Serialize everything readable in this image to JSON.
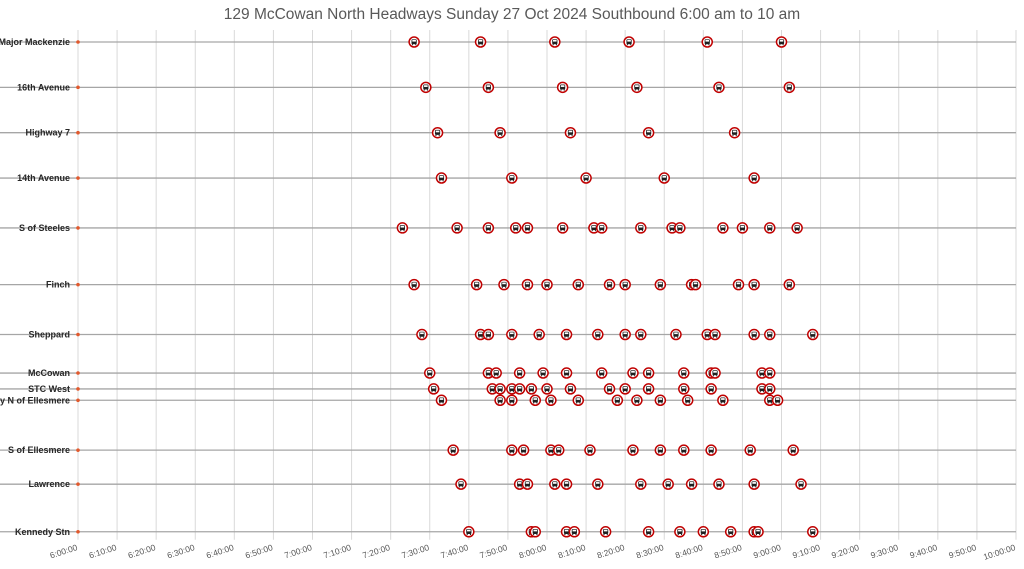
{
  "chart_data": {
    "type": "scatter",
    "title": "129 McCowan North Headways Sunday 27 Oct 2024 Southbound 6:00 am to 10 am",
    "xlabel": "",
    "ylabel": "",
    "x_axis_ticks": [
      "6:00:00",
      "6:10:00",
      "6:20:00",
      "6:30:00",
      "6:40:00",
      "6:50:00",
      "7:00:00",
      "7:10:00",
      "7:20:00",
      "7:30:00",
      "7:40:00",
      "7:50:00",
      "8:00:00",
      "8:10:00",
      "8:20:00",
      "8:30:00",
      "8:40:00",
      "8:50:00",
      "9:00:00",
      "9:10:00",
      "9:20:00",
      "9:30:00",
      "9:40:00",
      "9:50:00",
      "10:00:00"
    ],
    "x_range_minutes": [
      360,
      600
    ],
    "grid": "vertical",
    "marker": "bus-icon",
    "colors": {
      "marker_ring": "#c00000",
      "stop_dot": "#e2592d",
      "route_line": "#a6a6a6",
      "grid": "#d9d9d9"
    },
    "stops": [
      {
        "name": "S of Major Mackenzie",
        "position": 0,
        "times": [
          "7:26",
          "7:43",
          "8:02",
          "8:21",
          "8:41",
          "9:00"
        ]
      },
      {
        "name": "16th Avenue",
        "position": 1,
        "times": [
          "7:29",
          "7:45",
          "8:04",
          "8:23",
          "8:44",
          "9:02"
        ]
      },
      {
        "name": "Highway 7",
        "position": 2,
        "times": [
          "7:32",
          "7:48",
          "8:06",
          "8:26",
          "8:48"
        ]
      },
      {
        "name": "14th Avenue",
        "position": 3,
        "times": [
          "7:33",
          "7:51",
          "8:10",
          "8:30",
          "8:53"
        ]
      },
      {
        "name": "S of Steeles",
        "position": 4.1,
        "times": [
          "7:23",
          "7:37",
          "7:45",
          "7:52",
          "7:55",
          "8:04",
          "8:12",
          "8:14",
          "8:24",
          "8:32",
          "8:34",
          "8:45",
          "8:50",
          "8:57",
          "9:04"
        ]
      },
      {
        "name": "Finch",
        "position": 5.35,
        "times": [
          "7:26",
          "7:42",
          "7:49",
          "7:55",
          "8:00",
          "8:08",
          "8:16",
          "8:20",
          "8:29",
          "8:37",
          "8:38",
          "8:49",
          "8:53",
          "9:02"
        ]
      },
      {
        "name": "Sheppard",
        "position": 6.45,
        "times": [
          "7:28",
          "7:43",
          "7:45",
          "7:51",
          "7:58",
          "8:05",
          "8:13",
          "8:20",
          "8:24",
          "8:33",
          "8:41",
          "8:43",
          "8:53",
          "8:57",
          "9:08"
        ]
      },
      {
        "name": "McCowan",
        "position": 7.3,
        "times": [
          "7:30",
          "7:45",
          "7:47",
          "7:53",
          "7:59",
          "8:05",
          "8:14",
          "8:22",
          "8:26",
          "8:35",
          "8:42",
          "8:43",
          "8:55",
          "8:57"
        ]
      },
      {
        "name": "STC West",
        "position": 7.65,
        "times": [
          "7:31",
          "7:46",
          "7:48",
          "7:51",
          "7:53",
          "7:56",
          "8:00",
          "8:06",
          "8:16",
          "8:20",
          "8:26",
          "8:35",
          "8:42",
          "8:55",
          "8:57"
        ]
      },
      {
        "name": "Brimley N of Ellesmere",
        "position": 7.9,
        "times": [
          "7:33",
          "7:48",
          "7:51",
          "7:57",
          "8:01",
          "8:08",
          "8:18",
          "8:23",
          "8:29",
          "8:36",
          "8:45",
          "8:57",
          "8:59"
        ]
      },
      {
        "name": "S of Ellesmere",
        "position": 9.0,
        "times": [
          "7:36",
          "7:51",
          "7:54",
          "8:01",
          "8:03",
          "8:11",
          "8:22",
          "8:29",
          "8:35",
          "8:42",
          "8:52",
          "9:03"
        ]
      },
      {
        "name": "Lawrence",
        "position": 9.75,
        "times": [
          "7:38",
          "7:53",
          "7:55",
          "8:02",
          "8:05",
          "8:13",
          "8:24",
          "8:31",
          "8:37",
          "8:44",
          "8:53",
          "9:05"
        ]
      },
      {
        "name": "Kennedy Stn",
        "position": 10.8,
        "times": [
          "7:40",
          "7:56",
          "7:57",
          "8:05",
          "8:07",
          "8:15",
          "8:26",
          "8:34",
          "8:40",
          "8:47",
          "8:53",
          "8:54",
          "9:08"
        ]
      }
    ]
  }
}
